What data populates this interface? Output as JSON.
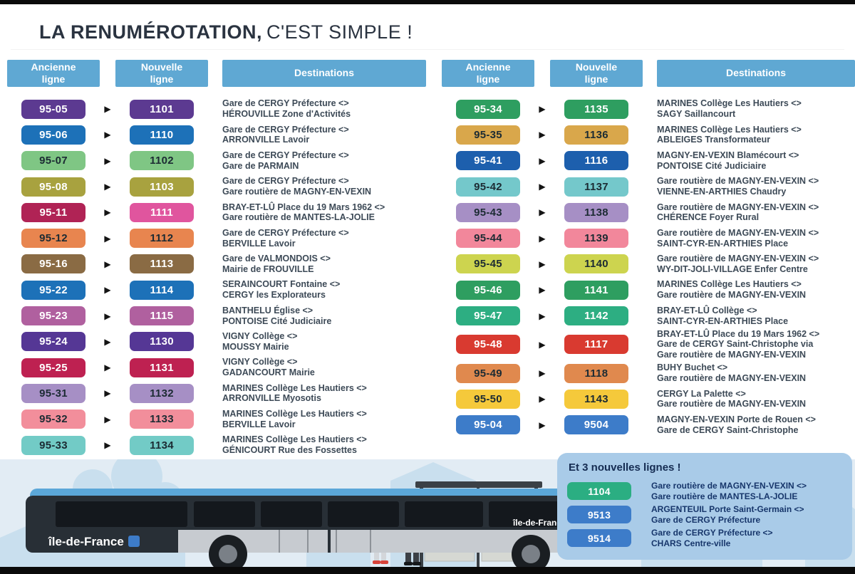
{
  "title": {
    "bold": "LA RENUMÉROTATION,",
    "light": "C'EST SIMPLE !"
  },
  "icons": {
    "arrow": "▶"
  },
  "colors": {
    "header_blue": "#5fa8d3",
    "panel_blue": "#a9cbe8",
    "dest_text": "#3d4a57",
    "panel_text": "#17366b"
  },
  "tables": [
    {
      "headers": {
        "old": "Ancienne\nligne",
        "new": "Nouvelle\nligne",
        "dest": "Destinations"
      },
      "rows": [
        {
          "old": "95-05",
          "new": "1101",
          "color": "#5c3a91",
          "text": "light",
          "dest": [
            "Gare de CERGY Préfecture <>",
            "HÉROUVILLE Zone d'Activités"
          ]
        },
        {
          "old": "95-06",
          "new": "1110",
          "color": "#1d71b8",
          "text": "light",
          "dest": [
            "Gare de CERGY Préfecture <>",
            "ARRONVILLE Lavoir"
          ]
        },
        {
          "old": "95-07",
          "new": "1102",
          "color": "#7fc684",
          "text": "dark",
          "dest": [
            "Gare de CERGY Préfecture <>",
            "Gare de PARMAIN"
          ]
        },
        {
          "old": "95-08",
          "new": "1103",
          "color": "#a8a23f",
          "text": "light",
          "dest": [
            "Gare de CERGY Préfecture <>",
            "Gare routière de MAGNY-EN-VEXIN"
          ]
        },
        {
          "old": "95-11",
          "new": "1111",
          "color": "#b02355",
          "new_color": "#e0559e",
          "text": "light",
          "dest": [
            "BRAY-ET-LÛ Place du 19 Mars 1962 <>",
            "Gare routière de MANTES-LA-JOLIE"
          ]
        },
        {
          "old": "95-12",
          "new": "1112",
          "color": "#e8854f",
          "text": "dark",
          "dest": [
            "Gare de CERGY Préfecture <>",
            "BERVILLE Lavoir"
          ]
        },
        {
          "old": "95-16",
          "new": "1113",
          "color": "#8a6b44",
          "text": "light",
          "dest": [
            "Gare de VALMONDOIS <>",
            "Mairie de FROUVILLE"
          ]
        },
        {
          "old": "95-22",
          "new": "1114",
          "color": "#1d71b8",
          "text": "light",
          "dest": [
            "SERAINCOURT Fontaine <>",
            "CERGY les Explorateurs"
          ]
        },
        {
          "old": "95-23",
          "new": "1115",
          "color": "#b0609f",
          "text": "light",
          "dest": [
            "BANTHELU Église <>",
            "PONTOISE Cité Judiciaire"
          ]
        },
        {
          "old": "95-24",
          "new": "1130",
          "color": "#553795",
          "text": "light",
          "dest": [
            "VIGNY Collège <>",
            "MOUSSY Mairie"
          ]
        },
        {
          "old": "95-25",
          "new": "1131",
          "color": "#be2151",
          "text": "light",
          "dest": [
            "VIGNY Collège <>",
            "GADANCOURT Mairie"
          ]
        },
        {
          "old": "95-31",
          "new": "1132",
          "color": "#a68fc5",
          "text": "dark",
          "dest": [
            "MARINES Collège Les Hautiers <>",
            "ARRONVILLE Myosotis"
          ]
        },
        {
          "old": "95-32",
          "new": "1133",
          "color": "#f28e9b",
          "text": "dark",
          "dest": [
            "MARINES Collège Les Hautiers <>",
            "BERVILLE Lavoir"
          ]
        },
        {
          "old": "95-33",
          "new": "1134",
          "color": "#72cbc6",
          "text": "dark",
          "dest": [
            "MARINES Collège Les Hautiers <>",
            "GÉNICOURT Rue des Fossettes"
          ]
        }
      ]
    },
    {
      "headers": {
        "old": "Ancienne\nligne",
        "new": "Nouvelle\nligne",
        "dest": "Destinations"
      },
      "rows": [
        {
          "old": "95-34",
          "new": "1135",
          "color": "#2e9e60",
          "text": "light",
          "dest": [
            "MARINES Collège Les Hautiers <>",
            "SAGY Saillancourt"
          ]
        },
        {
          "old": "95-35",
          "new": "1136",
          "color": "#d9a74b",
          "text": "dark",
          "dest": [
            "MARINES Collège Les Hautiers <>",
            "ABLEIGES Transformateur"
          ]
        },
        {
          "old": "95-41",
          "new": "1116",
          "color": "#1d5fad",
          "text": "light",
          "dest": [
            "MAGNY-EN-VEXIN Blamécourt <>",
            "PONTOISE Cité Judiciaire"
          ]
        },
        {
          "old": "95-42",
          "new": "1137",
          "color": "#74c8cb",
          "text": "dark",
          "dest": [
            "Gare routière de MAGNY-EN-VEXIN <>",
            "VIENNE-EN-ARTHIES Chaudry"
          ]
        },
        {
          "old": "95-43",
          "new": "1138",
          "color": "#a68fc5",
          "text": "dark",
          "dest": [
            "Gare routière de MAGNY-EN-VEXIN <>",
            "CHÉRENCE Foyer Rural"
          ]
        },
        {
          "old": "95-44",
          "new": "1139",
          "color": "#f2879b",
          "text": "dark",
          "dest": [
            "Gare routière de MAGNY-EN-VEXIN <>",
            "SAINT-CYR-EN-ARTHIES Place"
          ]
        },
        {
          "old": "95-45",
          "new": "1140",
          "color": "#cdd44f",
          "text": "dark",
          "dest": [
            "Gare routière de MAGNY-EN-VEXIN <>",
            "WY-DIT-JOLI-VILLAGE Enfer Centre"
          ]
        },
        {
          "old": "95-46",
          "new": "1141",
          "color": "#2e9e60",
          "text": "light",
          "dest": [
            "MARINES Collège Les Hautiers <>",
            "Gare routière de MAGNY-EN-VEXIN"
          ]
        },
        {
          "old": "95-47",
          "new": "1142",
          "color": "#2dae82",
          "text": "light",
          "dest": [
            "BRAY-ET-LÛ Collège <>",
            "SAINT-CYR-EN-ARTHIES Place"
          ]
        },
        {
          "old": "95-48",
          "new": "1117",
          "color": "#d93a30",
          "text": "light",
          "dest": [
            "BRAY-ET-LÛ Place du 19 Mars 1962 <>",
            "Gare de CERGY Saint-Christophe via",
            "Gare routière de MAGNY-EN-VEXIN"
          ]
        },
        {
          "old": "95-49",
          "new": "1118",
          "color": "#e0894e",
          "text": "dark",
          "dest": [
            "BUHY Buchet <>",
            "Gare routière de MAGNY-EN-VEXIN"
          ]
        },
        {
          "old": "95-50",
          "new": "1143",
          "color": "#f5c93b",
          "text": "dark",
          "dest": [
            "CERGY La Palette <>",
            "Gare routière de MAGNY-EN-VEXIN"
          ]
        },
        {
          "old": "95-04",
          "new": "9504",
          "color": "#3d7cc9",
          "text": "light",
          "dest": [
            "MAGNY-EN-VEXIN Porte de Rouen <>",
            "Gare de CERGY Saint-Christophe"
          ]
        }
      ]
    }
  ],
  "new_lines": {
    "title": "Et 3 nouvelles lignes !",
    "rows": [
      {
        "num": "1104",
        "color": "#2bae82",
        "dest": [
          "Gare routière de MAGNY-EN-VEXIN <>",
          "Gare routière de MANTES-LA-JOLIE"
        ]
      },
      {
        "num": "9513",
        "color": "#3d7cc9",
        "dest": [
          "ARGENTEUIL Porte Saint-Germain <>",
          "Gare de CERGY Préfecture"
        ]
      },
      {
        "num": "9514",
        "color": "#3d7cc9",
        "dest": [
          "Gare de CERGY Préfecture <>",
          "CHARS Centre-ville"
        ]
      }
    ]
  },
  "bus": {
    "logo": "île-de-France"
  }
}
